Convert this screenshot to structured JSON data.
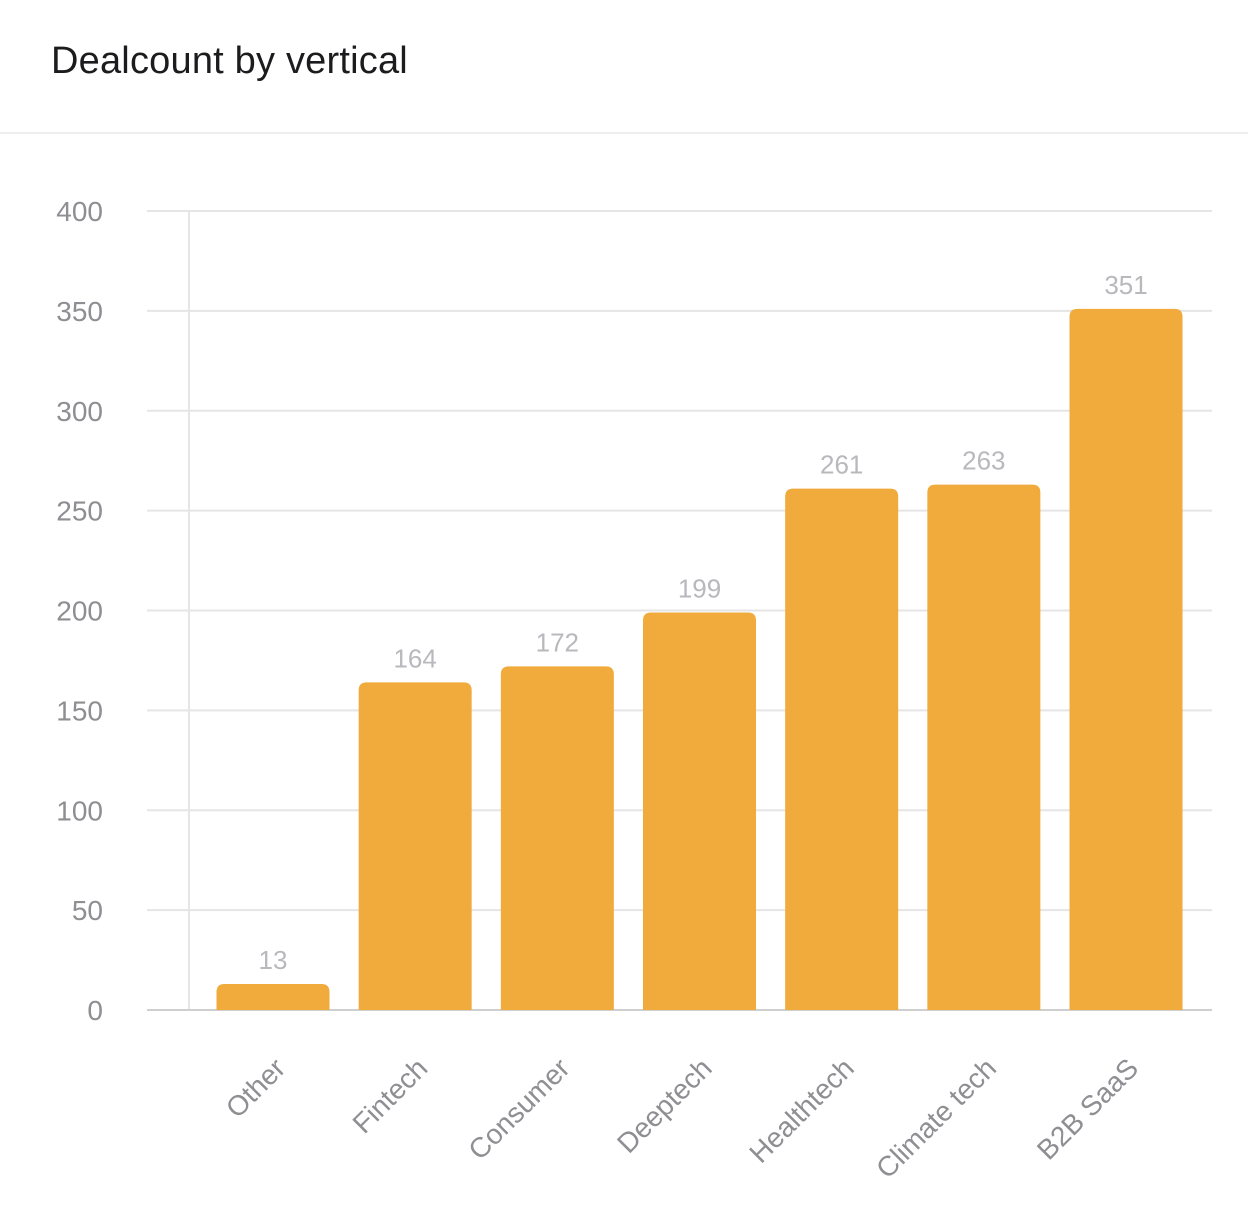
{
  "header": {
    "title": "Dealcount by vertical"
  },
  "chart_data": {
    "type": "bar",
    "title": "Dealcount by vertical",
    "xlabel": "",
    "ylabel": "",
    "categories": [
      "Other",
      "Fintech",
      "Consumer",
      "Deeptech",
      "Healthtech",
      "Climate tech",
      "B2B SaaS"
    ],
    "values": [
      13,
      164,
      172,
      199,
      261,
      263,
      351
    ],
    "ylim": [
      0,
      400
    ],
    "yticks": [
      0,
      50,
      100,
      150,
      200,
      250,
      300,
      350,
      400
    ],
    "grid": true,
    "data_labels": true,
    "legend": "none",
    "bar_color": "#f1aa3c",
    "grid_color": "#e5e5e5",
    "axis_color": "#cfcfcf"
  }
}
